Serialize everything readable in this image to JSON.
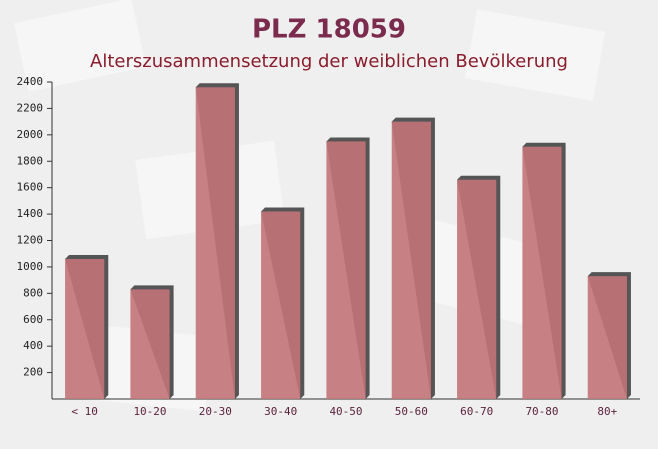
{
  "chart_data": {
    "type": "bar",
    "title": "PLZ 18059",
    "subtitle": "Alterszusammensetzung der weiblichen Bevölkerung",
    "categories": [
      "< 10",
      "10-20",
      "20-30",
      "30-40",
      "40-50",
      "50-60",
      "60-70",
      "70-80",
      "80+"
    ],
    "values": [
      1060,
      830,
      2360,
      1420,
      1950,
      2100,
      1660,
      1910,
      930
    ],
    "color": "#c27479",
    "ylim": [
      0,
      2400
    ],
    "yticks": [
      200,
      400,
      600,
      800,
      1000,
      1200,
      1400,
      1600,
      1800,
      2000,
      2200,
      2400
    ],
    "grid": false
  }
}
